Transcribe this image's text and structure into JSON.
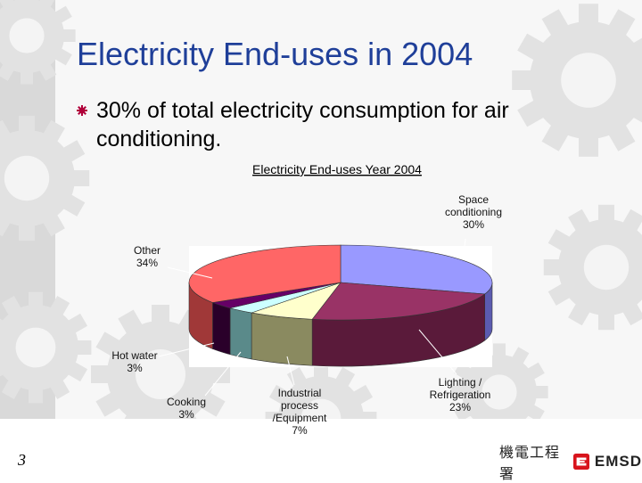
{
  "slide": {
    "title": "Electricity End-uses in 2004",
    "bullet": "30% of total electricity consumption for air conditioning.",
    "page_number": "3",
    "bullet_color": "#b0003a",
    "title_color": "#1f3f99"
  },
  "logo": {
    "chinese_text": "機電工程署",
    "english_text": "EMSD",
    "mark_color": "#d8141c"
  },
  "chart_data": {
    "type": "pie",
    "title": "Electricity End-uses Year 2004",
    "unit": "%",
    "slices": [
      {
        "label": "Space conditioning",
        "label_lines": [
          "Space",
          "conditioning",
          "30%"
        ],
        "value": 30,
        "color": "#9999ff",
        "side_color": "#5b5bb0"
      },
      {
        "label": "Lighting / Refrigeration",
        "label_lines": [
          "Lighting /",
          "Refrigeration",
          "23%"
        ],
        "value": 23,
        "color": "#993366",
        "side_color": "#5a1a3a"
      },
      {
        "label": "Industrial process /Equipment",
        "label_lines": [
          "Industrial",
          "process",
          "/Equipment",
          "7%"
        ],
        "value": 7,
        "color": "#ffffcc",
        "side_color": "#8a8a60"
      },
      {
        "label": "Cooking",
        "label_lines": [
          "Cooking",
          "3%"
        ],
        "value": 3,
        "color": "#ccffff",
        "side_color": "#5a8a8a"
      },
      {
        "label": "Hot water",
        "label_lines": [
          "Hot water",
          "3%"
        ],
        "value": 3,
        "color": "#660066",
        "side_color": "#2a002a"
      },
      {
        "label": "Other",
        "label_lines": [
          "Other",
          "34%"
        ],
        "value": 34,
        "color": "#ff6666",
        "side_color": "#a03838"
      }
    ]
  }
}
